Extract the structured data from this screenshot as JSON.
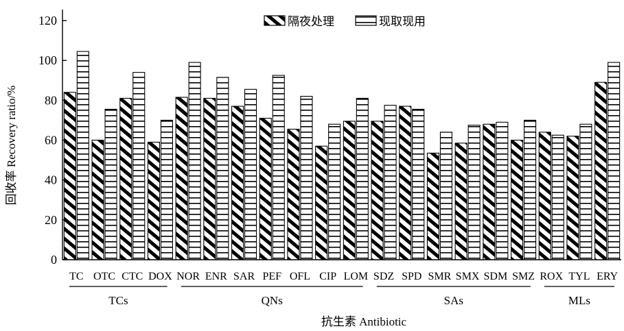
{
  "chart_data": {
    "type": "bar",
    "title": "",
    "ylabel": "回收率 Recovery ratio/%",
    "xlabel": "抗生素 Antibiotic",
    "ylim": [
      0,
      120
    ],
    "yticks": [
      0,
      20,
      40,
      60,
      80,
      100,
      120
    ],
    "categories": [
      "TC",
      "OTC",
      "CTC",
      "DOX",
      "NOR",
      "ENR",
      "SAR",
      "PEF",
      "OFL",
      "CIP",
      "LOM",
      "SDZ",
      "SPD",
      "SMR",
      "SMX",
      "SDM",
      "SMZ",
      "ROX",
      "TYL",
      "ERY"
    ],
    "groups": [
      {
        "label": "TCs",
        "members": [
          "TC",
          "OTC",
          "CTC",
          "DOX"
        ]
      },
      {
        "label": "QNs",
        "members": [
          "NOR",
          "ENR",
          "SAR",
          "PEF",
          "OFL",
          "CIP",
          "LOM"
        ]
      },
      {
        "label": "SAs",
        "members": [
          "SDZ",
          "SPD",
          "SMR",
          "SMX",
          "SDM",
          "SMZ"
        ]
      },
      {
        "label": "MLs",
        "members": [
          "ROX",
          "TYL",
          "ERY"
        ]
      }
    ],
    "series": [
      {
        "name": "隔夜处理",
        "pattern": "diagonal-stripes",
        "values": [
          84,
          60,
          81,
          59,
          81.5,
          81,
          77,
          71,
          65.5,
          57,
          69.5,
          69.5,
          77,
          53.5,
          58.5,
          68,
          60,
          64,
          62,
          89
        ]
      },
      {
        "name": "现取现用",
        "pattern": "horizontal-stripes",
        "values": [
          104.5,
          75.5,
          94,
          70,
          99,
          91.5,
          85.5,
          92.5,
          82,
          68,
          81,
          77.5,
          75.5,
          64,
          67.5,
          69,
          70,
          62.5,
          68,
          99
        ]
      }
    ],
    "legend_position": "top-center",
    "grid": false
  }
}
